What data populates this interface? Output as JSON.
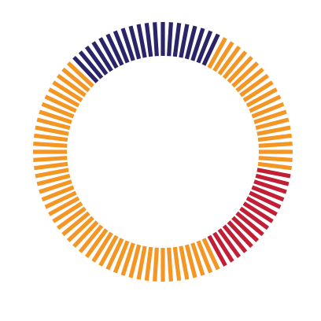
{
  "chart_data": {
    "type": "pie",
    "style": "radial-tick-donut",
    "total_ticks": 100,
    "start_angle_deg": -63,
    "direction": "clockwise",
    "title": "",
    "legend": "none",
    "slices": [
      {
        "label": "",
        "value": 20,
        "color": "#f39623"
      },
      {
        "label": "",
        "value": 15,
        "color": "#c01f35"
      },
      {
        "label": "",
        "value": 45,
        "color": "#f39623"
      },
      {
        "label": "",
        "value": 20,
        "color": "#2a2568"
      }
    ]
  }
}
